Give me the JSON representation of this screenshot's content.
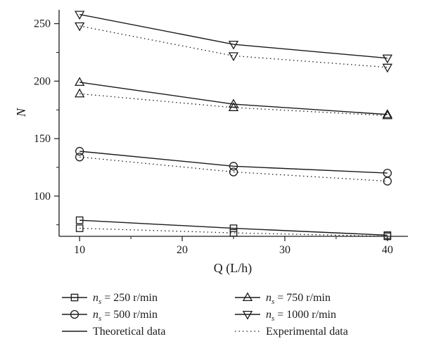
{
  "chart_data": {
    "type": "line",
    "xlabel": "Q (L/h)",
    "ylabel": "N",
    "xlim": [
      8,
      42
    ],
    "ylim": [
      65,
      262
    ],
    "xticks": [
      10,
      20,
      30,
      40
    ],
    "yticks": [
      100,
      150,
      200,
      250
    ],
    "x": [
      10,
      25,
      40
    ],
    "groups": [
      {
        "ns_value": "250 r/min",
        "marker": "square",
        "theoretical": [
          79,
          72,
          66
        ],
        "experimental": [
          72,
          68,
          65
        ]
      },
      {
        "ns_value": "500 r/min",
        "marker": "circle",
        "theoretical": [
          139,
          126,
          120
        ],
        "experimental": [
          134,
          121,
          113
        ]
      },
      {
        "ns_value": "750 r/min",
        "marker": "triangle-up",
        "theoretical": [
          199,
          180,
          171
        ],
        "experimental": [
          189,
          177,
          170
        ]
      },
      {
        "ns_value": "1000 r/min",
        "marker": "triangle-down",
        "theoretical": [
          258,
          232,
          220
        ],
        "experimental": [
          248,
          222,
          212
        ]
      }
    ],
    "legend": {
      "ns_symbol": "n",
      "ns_subscript": "s",
      "equals": "=",
      "theoretical_label": "Theoretical data",
      "experimental_label": "Experimental data",
      "placement": "bottom"
    },
    "grid": false
  }
}
